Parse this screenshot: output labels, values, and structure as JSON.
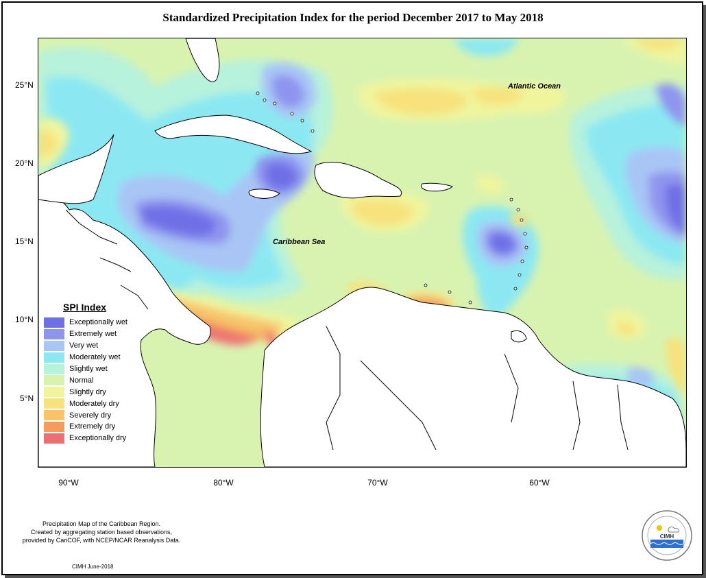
{
  "title": "Standardized Precipitation Index for the period December 2017 to May 2018",
  "map": {
    "labels": {
      "atlantic": "Atlantic Ocean",
      "caribbean": "Caribbean Sea"
    },
    "lat_ticks": [
      "25°N",
      "20°N",
      "15°N",
      "10°N",
      "5°N"
    ],
    "lon_ticks": [
      "90°W",
      "80°W",
      "70°W",
      "60°W"
    ],
    "extent": {
      "lon": [
        -92,
        -50
      ],
      "lat": [
        1.3,
        28.7
      ]
    }
  },
  "legend": {
    "title": "SPI Index",
    "items": [
      {
        "label": "Exceptionally wet",
        "color": "#6f6fe6"
      },
      {
        "label": "Extremely wet",
        "color": "#8f95ee"
      },
      {
        "label": "Very wet",
        "color": "#a9c5f5"
      },
      {
        "label": "Moderately wet",
        "color": "#8be8f2"
      },
      {
        "label": "Slightly wet",
        "color": "#b7f2dc"
      },
      {
        "label": "Normal",
        "color": "#d8f3b0"
      },
      {
        "label": "Slightly dry",
        "color": "#f0f59c"
      },
      {
        "label": "Moderately dry",
        "color": "#f7e27d"
      },
      {
        "label": "Severely dry",
        "color": "#f8c46a"
      },
      {
        "label": "Extremely dry",
        "color": "#f39c5e"
      },
      {
        "label": "Exceptionally dry",
        "color": "#ee6f73"
      }
    ]
  },
  "footnote": {
    "line1": "Precipitation Map of the Caribbean Region.",
    "line2": "Created by aggregating station based observations,",
    "line3": "provided by CariCOF, with NCEP/NCAR Reanalysis Data."
  },
  "credit": "CIMH June-2018",
  "logo": {
    "text": "CIMH",
    "name": "cimh-logo"
  }
}
